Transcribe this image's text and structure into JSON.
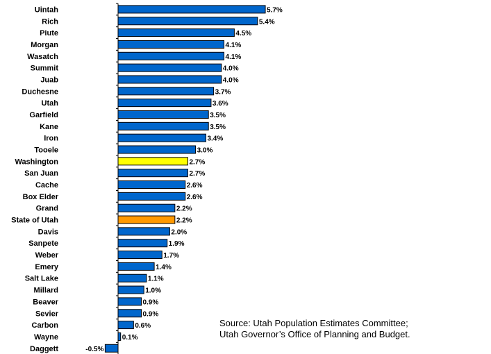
{
  "chart_data": {
    "type": "bar",
    "orientation": "horizontal",
    "categories": [
      "Uintah",
      "Rich",
      "Piute",
      "Morgan",
      "Wasatch",
      "Summit",
      "Juab",
      "Duchesne",
      "Utah",
      "Garfield",
      "Kane",
      "Iron",
      "Tooele",
      "Washington",
      "San Juan",
      "Cache",
      "Box Elder",
      "Grand",
      "State of Utah",
      "Davis",
      "Sanpete",
      "Weber",
      "Emery",
      "Salt Lake",
      "Millard",
      "Beaver",
      "Sevier",
      "Carbon",
      "Wayne",
      "Daggett"
    ],
    "values": [
      5.7,
      5.4,
      4.5,
      4.1,
      4.1,
      4.0,
      4.0,
      3.7,
      3.6,
      3.5,
      3.5,
      3.4,
      3.0,
      2.7,
      2.7,
      2.6,
      2.6,
      2.2,
      2.2,
      2.0,
      1.9,
      1.7,
      1.4,
      1.1,
      1.0,
      0.9,
      0.9,
      0.6,
      0.1,
      -0.5
    ],
    "value_labels": [
      "5.7%",
      "5.4%",
      "4.5%",
      "4.1%",
      "4.1%",
      "4.0%",
      "4.0%",
      "3.7%",
      "3.6%",
      "3.5%",
      "3.5%",
      "3.4%",
      "3.0%",
      "2.7%",
      "2.7%",
      "2.6%",
      "2.6%",
      "2.2%",
      "2.2%",
      "2.0%",
      "1.9%",
      "1.7%",
      "1.4%",
      "1.1%",
      "1.0%",
      "0.9%",
      "0.9%",
      "0.6%",
      "0.1%",
      "-0.5%"
    ],
    "highlight": {
      "Washington": "#ffff00",
      "State of Utah": "#ff9900"
    },
    "default_color": "#0066cc",
    "title": "",
    "xlabel": "",
    "ylabel": "",
    "grid": false
  },
  "source_note": {
    "line1": "Source: Utah Population Estimates Committee;",
    "line2": "Utah Governor’s Office of Planning and Budget."
  }
}
